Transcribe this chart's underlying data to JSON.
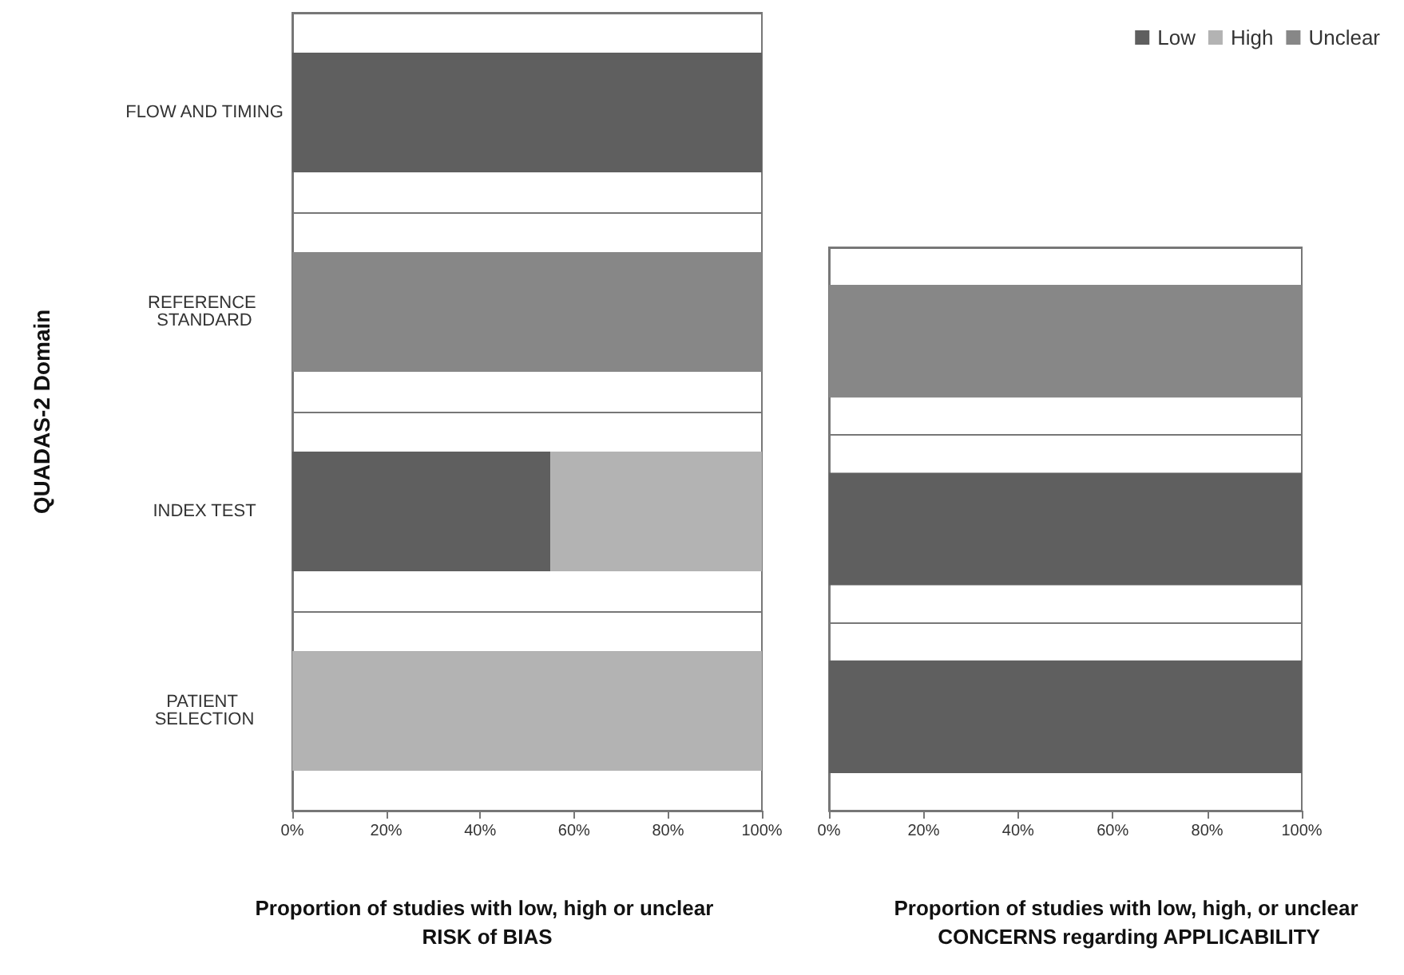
{
  "chart_data": [
    {
      "type": "bar",
      "orientation": "horizontal",
      "stacked": true,
      "ylabel": "QUADAS-2 Domain",
      "xlabel": "Proportion of studies with low, high or unclear RISK of BIAS",
      "categories": [
        "FLOW AND TIMING",
        "REFERENCE STANDARD",
        "INDEX TEST",
        "PATIENT SELECTION"
      ],
      "series": [
        {
          "color": "#5f5f5f",
          "values": [
            100,
            0,
            55,
            0
          ]
        },
        {
          "color": "#b3b3b3",
          "values": [
            0,
            0,
            45,
            100
          ]
        },
        {
          "color": "#878787",
          "values": [
            0,
            100,
            0,
            0
          ]
        }
      ],
      "xlim": [
        0,
        100
      ],
      "xticks": [
        {
          "value": 0,
          "label": "0%"
        },
        {
          "value": 20,
          "label": "20%"
        },
        {
          "value": 40,
          "label": "40%"
        },
        {
          "value": 60,
          "label": "60%"
        },
        {
          "value": 80,
          "label": "80%"
        },
        {
          "value": 100,
          "label": "100%"
        }
      ],
      "grid": "y",
      "legend": false
    },
    {
      "type": "bar",
      "orientation": "horizontal",
      "stacked": true,
      "xlabel": "Proportion of studies with low, high, or unclear CONCERNS regarding APPLICABILITY",
      "categories": [
        null,
        null,
        null
      ],
      "series": [
        {
          "name": "Low",
          "color": "#5f5f5f",
          "values": [
            0,
            100,
            100
          ]
        },
        {
          "name": "High",
          "color": "#b3b3b3",
          "values": [
            0,
            0,
            0
          ]
        },
        {
          "name": "Unclear",
          "color": "#878787",
          "values": [
            100,
            0,
            0
          ]
        }
      ],
      "xlim": [
        0,
        100
      ],
      "xticks": [
        {
          "value": 0,
          "label": "0%"
        },
        {
          "value": 20,
          "label": "20%"
        },
        {
          "value": 40,
          "label": "40%"
        },
        {
          "value": 60,
          "label": "60%"
        },
        {
          "value": 80,
          "label": "80%"
        },
        {
          "value": 100,
          "label": "100%"
        }
      ],
      "grid": "y",
      "legend": "top right"
    }
  ]
}
